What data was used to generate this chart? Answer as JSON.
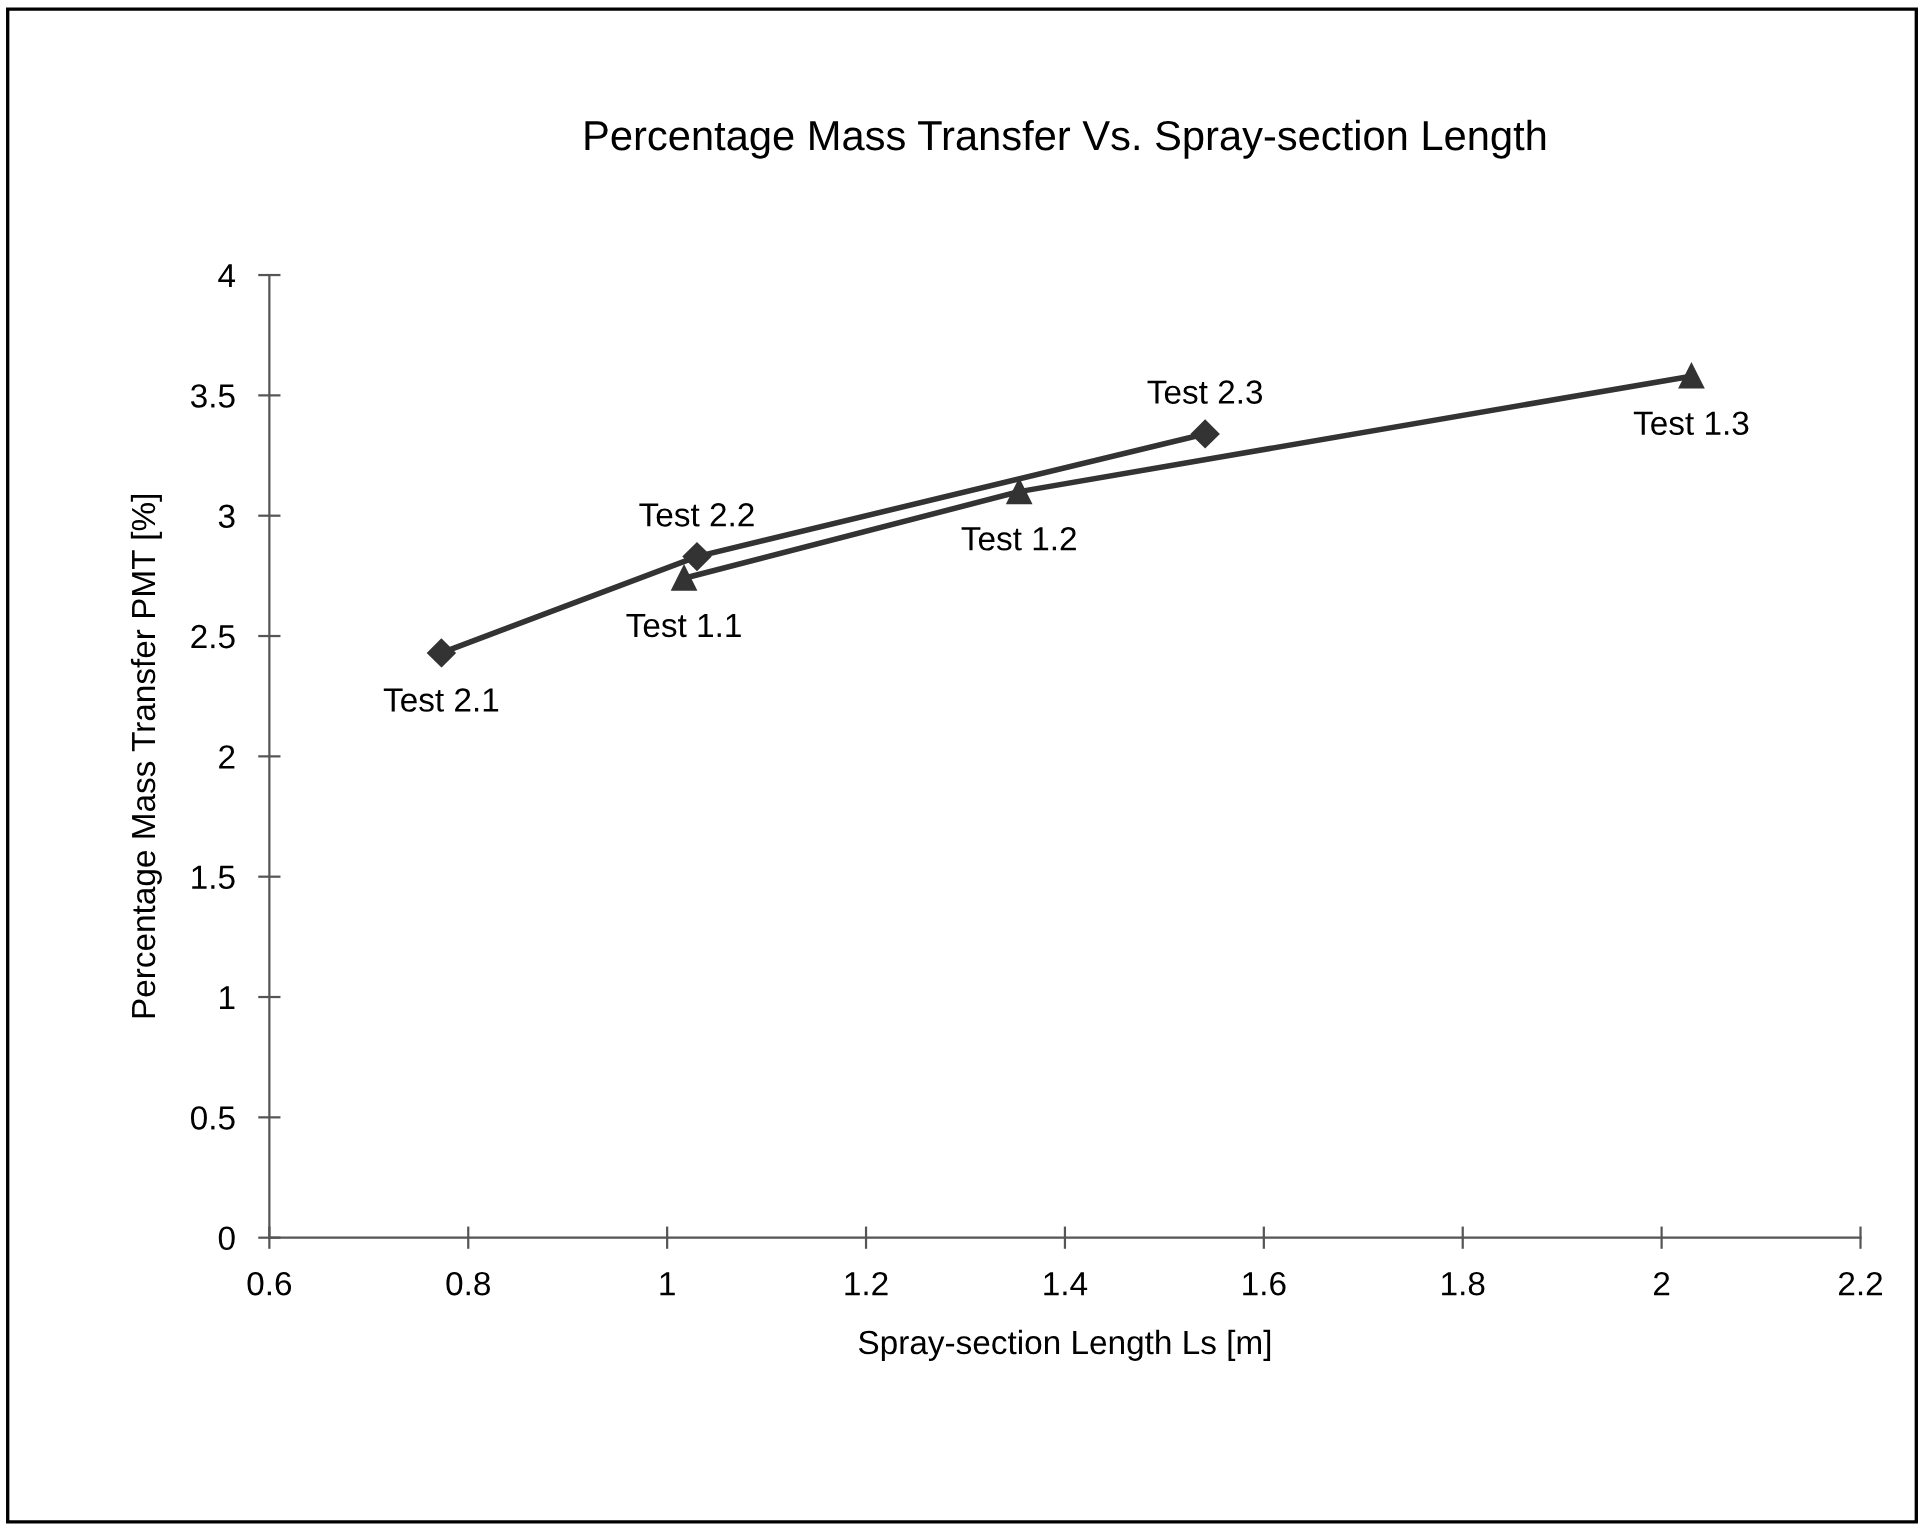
{
  "chart_data": {
    "type": "line",
    "title": "Percentage Mass Transfer Vs. Spray-section Length",
    "xlabel": "Spray-section Length Ls [m]",
    "ylabel": "Percentage Mass Transfer PMT [%]",
    "xlim": [
      0.6,
      2.2
    ],
    "xticks": [
      0.6,
      0.8,
      1,
      1.2,
      1.4,
      1.6,
      1.8,
      2,
      2.2
    ],
    "ylim": [
      0,
      4
    ],
    "yticks": [
      0,
      0.5,
      1,
      1.5,
      2,
      2.5,
      3,
      3.5,
      4
    ],
    "grid": false,
    "line_style": "solid",
    "series": [
      {
        "x": [
          1.017,
          1.354,
          2.03
        ],
        "values": [
          2.74,
          3.1,
          3.58
        ],
        "color": "#333333",
        "marker": "triangle",
        "value_labels": [
          "Test 1.1",
          "Test 1.2",
          "Test 1.3"
        ]
      },
      {
        "x": [
          0.773,
          1.03,
          1.541
        ],
        "values": [
          2.43,
          2.83,
          3.34
        ],
        "color": "#333333",
        "marker": "diamond",
        "value_labels": [
          "Test 2.1",
          "Test 2.2",
          "Test 2.3"
        ]
      }
    ]
  }
}
